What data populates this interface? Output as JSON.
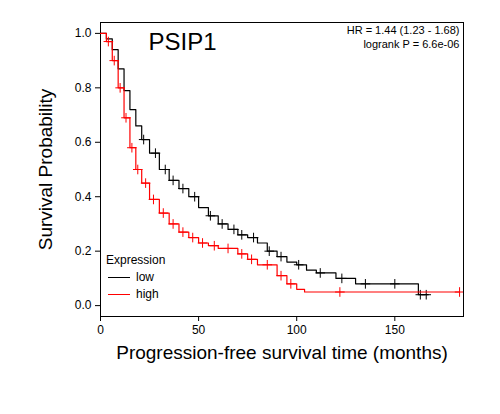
{
  "chart_data": {
    "type": "survival",
    "title": "PSIP1",
    "annotations": [
      "HR = 1.44 (1.23 - 1.68)",
      "logrank P = 6.6e-06"
    ],
    "x_label": "Progression-free survival time (months)",
    "y_label": "Survival Probability",
    "xlim": [
      0,
      185
    ],
    "xticks": [
      0,
      50,
      100,
      150
    ],
    "ylim": [
      -0.04,
      1.04
    ],
    "yticks": [
      {
        "value": 0,
        "label": "0.0"
      },
      {
        "value": 0.2,
        "label": "0.2"
      },
      {
        "value": 0.4,
        "label": "0.4"
      },
      {
        "value": 0.6,
        "label": "0.6"
      },
      {
        "value": 0.8,
        "label": "0.8"
      },
      {
        "value": 1,
        "label": "1.0"
      }
    ],
    "legend": "bottom-left",
    "legend_title": "Expression",
    "series": [
      {
        "name": "low",
        "color": "#000000",
        "line_style": "step",
        "marker": "plus",
        "x": [
          0,
          3,
          6,
          9,
          12,
          15,
          18,
          21,
          25,
          30,
          35,
          40,
          45,
          50,
          55,
          60,
          65,
          70,
          75,
          80,
          85,
          90,
          95,
          100,
          105,
          110,
          120,
          130,
          162,
          167
        ],
        "values": [
          1.0,
          0.98,
          0.94,
          0.87,
          0.79,
          0.72,
          0.66,
          0.61,
          0.56,
          0.5,
          0.46,
          0.43,
          0.4,
          0.36,
          0.33,
          0.3,
          0.28,
          0.26,
          0.25,
          0.23,
          0.2,
          0.18,
          0.16,
          0.15,
          0.13,
          0.12,
          0.1,
          0.08,
          0.04,
          0.04
        ],
        "censored_x": [
          22,
          28,
          33,
          37,
          42,
          48,
          56,
          62,
          68,
          72,
          78,
          86,
          92,
          101,
          112,
          123,
          135,
          150,
          163,
          166
        ],
        "censored_values": [
          0.61,
          0.56,
          0.5,
          0.46,
          0.43,
          0.4,
          0.33,
          0.3,
          0.28,
          0.26,
          0.25,
          0.2,
          0.18,
          0.15,
          0.12,
          0.1,
          0.08,
          0.08,
          0.04,
          0.04
        ]
      },
      {
        "name": "high",
        "color": "#ff0000",
        "line_style": "step",
        "marker": "plus",
        "x": [
          0,
          3,
          6,
          9,
          12,
          15,
          18,
          21,
          25,
          30,
          35,
          40,
          45,
          50,
          55,
          60,
          70,
          75,
          80,
          90,
          95,
          100,
          104,
          183
        ],
        "values": [
          1.0,
          0.97,
          0.9,
          0.8,
          0.69,
          0.58,
          0.5,
          0.45,
          0.39,
          0.34,
          0.3,
          0.27,
          0.25,
          0.23,
          0.22,
          0.21,
          0.19,
          0.17,
          0.15,
          0.11,
          0.08,
          0.06,
          0.05,
          0.05
        ],
        "censored_x": [
          4,
          7,
          10,
          13,
          16,
          19,
          23,
          27,
          32,
          37,
          42,
          47,
          52,
          58,
          65,
          72,
          77,
          85,
          92,
          97,
          122,
          183
        ],
        "censored_values": [
          0.97,
          0.9,
          0.8,
          0.69,
          0.58,
          0.5,
          0.45,
          0.39,
          0.34,
          0.3,
          0.27,
          0.25,
          0.23,
          0.22,
          0.21,
          0.19,
          0.17,
          0.15,
          0.11,
          0.08,
          0.05,
          0.05
        ]
      }
    ]
  }
}
